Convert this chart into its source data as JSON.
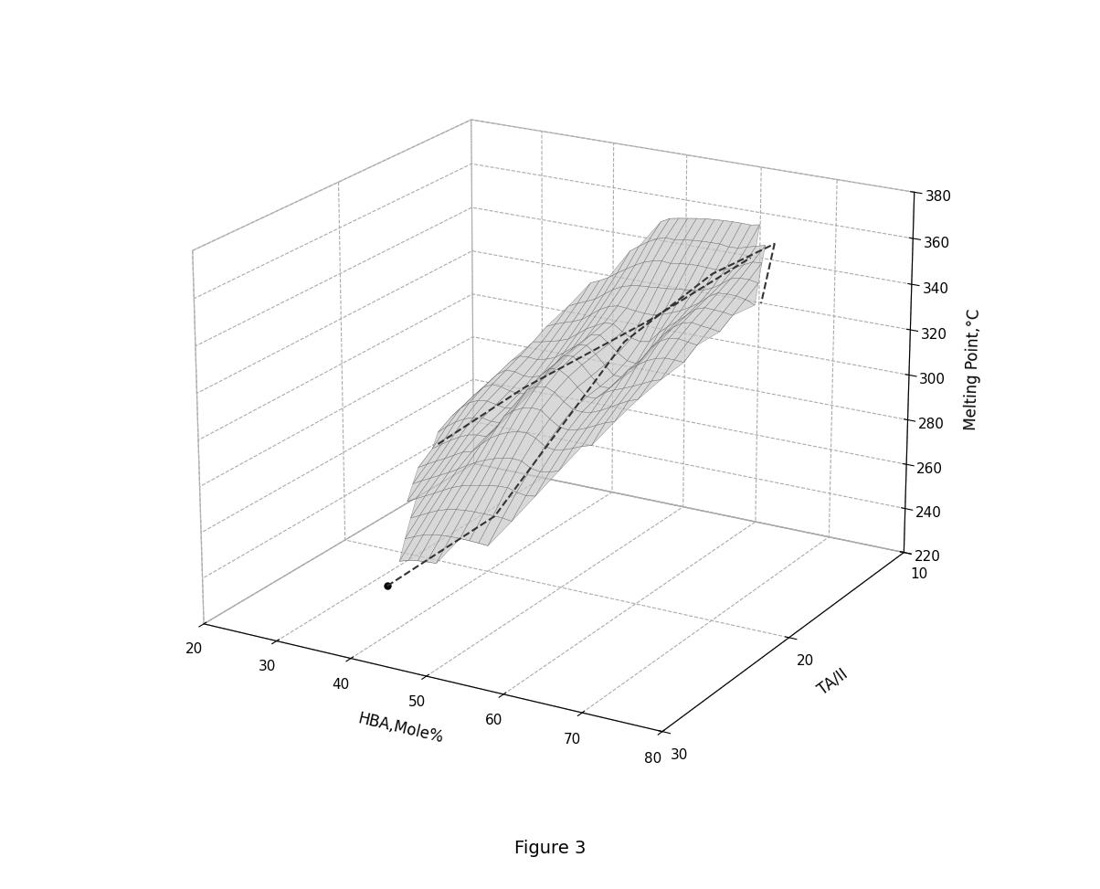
{
  "title": "Figure 3",
  "xlabel": "HBA,Mole%",
  "ylabel": "TA/II",
  "zlabel": "Melting Point,°C",
  "x_ticks": [
    20,
    30,
    40,
    50,
    60,
    70,
    80
  ],
  "y_ticks": [
    10,
    20,
    30
  ],
  "z_ticks": [
    220,
    240,
    260,
    280,
    300,
    320,
    340,
    360,
    380
  ],
  "xlim": [
    20,
    80
  ],
  "ylim": [
    10,
    30
  ],
  "zlim": [
    220,
    380
  ],
  "surface_color": "#c8c8c8",
  "surface_alpha": 0.7,
  "edge_color": "#555555",
  "line_color": "#333333",
  "background_color": "#ffffff",
  "data_points": [
    {
      "hba": 45,
      "ta": 30,
      "mp": 255
    },
    {
      "hba": 35,
      "ta": 22,
      "mp": 280
    },
    {
      "hba": 40,
      "ta": 15,
      "mp": 315
    },
    {
      "hba": 50,
      "ta": 10,
      "mp": 360
    },
    {
      "hba": 60,
      "ta": 10,
      "mp": 365
    },
    {
      "hba": 65,
      "ta": 12,
      "mp": 355
    },
    {
      "hba": 68,
      "ta": 15,
      "mp": 340
    },
    {
      "hba": 65,
      "ta": 20,
      "mp": 320
    },
    {
      "hba": 60,
      "ta": 25,
      "mp": 300
    },
    {
      "hba": 55,
      "ta": 28,
      "mp": 270
    },
    {
      "hba": 50,
      "ta": 30,
      "mp": 258
    }
  ]
}
